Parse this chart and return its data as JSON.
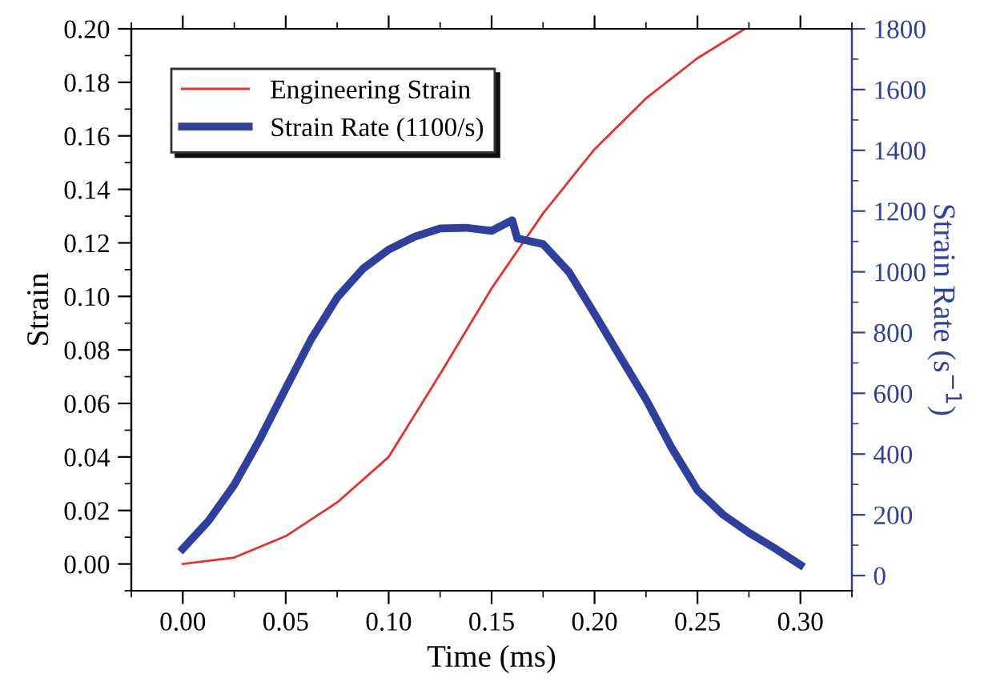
{
  "chart_data": {
    "type": "line",
    "xlabel": "Time (ms)",
    "ylabel": "Strain",
    "y2label": "Strain Rate (s$^{−1}$)",
    "xlim": [
      -0.025,
      0.325
    ],
    "xticks": [
      {
        "value": 0,
        "label": "0.00"
      },
      {
        "value": 0.05,
        "label": "0.05"
      },
      {
        "value": 0.1,
        "label": "0.10"
      },
      {
        "value": 0.15,
        "label": "0.15"
      },
      {
        "value": 0.2,
        "label": "0.20"
      },
      {
        "value": 0.25,
        "label": "0.25"
      },
      {
        "value": 0.3,
        "label": "0.30"
      }
    ],
    "ylim": [
      -0.01,
      0.2
    ],
    "yticks": [
      {
        "value": 0,
        "label": "0.00"
      },
      {
        "value": 0.02,
        "label": "0.02"
      },
      {
        "value": 0.04,
        "label": "0.04"
      },
      {
        "value": 0.06,
        "label": "0.06"
      },
      {
        "value": 0.08,
        "label": "0.08"
      },
      {
        "value": 0.1,
        "label": "0.10"
      },
      {
        "value": 0.12,
        "label": "0.12"
      },
      {
        "value": 0.14,
        "label": "0.14"
      },
      {
        "value": 0.16,
        "label": "0.16"
      },
      {
        "value": 0.18,
        "label": "0.18"
      },
      {
        "value": 0.2,
        "label": "0.20"
      }
    ],
    "y2lim": [
      -50,
      1800
    ],
    "y2ticks": [
      0,
      200,
      400,
      600,
      800,
      1000,
      1200,
      1400,
      1600,
      1800
    ],
    "grid": false,
    "legend": "top left",
    "line_style": "solid",
    "marker": "none",
    "series": [
      {
        "name": "Engineering Strain",
        "color": "#e8302a",
        "x": [
          0,
          0.025,
          0.05,
          0.075,
          0.1,
          0.125,
          0.15,
          0.175,
          0.2,
          0.225,
          0.25,
          0.273
        ],
        "values": [
          0,
          0.0024,
          0.0104,
          0.023,
          0.04,
          0.071,
          0.103,
          0.131,
          0.155,
          0.174,
          0.189,
          0.2
        ]
      },
      {
        "name": "Strain Rate (1100/s)",
        "color": "#2e3f9e",
        "axis": "y2",
        "x": [
          0,
          0.0125,
          0.025,
          0.0375,
          0.05,
          0.0625,
          0.075,
          0.0875,
          0.1,
          0.1125,
          0.125,
          0.1375,
          0.15,
          0.16,
          0.1625,
          0.175,
          0.1875,
          0.2,
          0.2125,
          0.225,
          0.2375,
          0.25,
          0.2625,
          0.275,
          0.2875,
          0.3
        ],
        "values": [
          88,
          180,
          299,
          450,
          616,
          780,
          915,
          1010,
          1073,
          1115,
          1143,
          1145,
          1135,
          1170,
          1110,
          1091,
          1000,
          862,
          720,
          580,
          420,
          281,
          200,
          141,
          90,
          35
        ]
      }
    ]
  }
}
